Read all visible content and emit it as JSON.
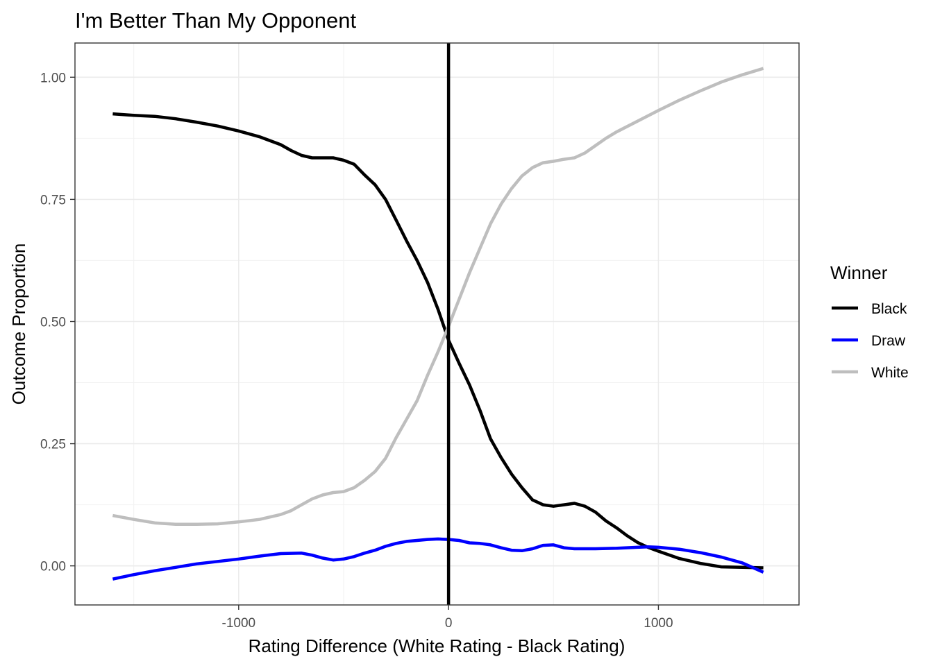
{
  "chart_data": {
    "type": "line",
    "title": "I'm Better Than My Opponent",
    "xlabel": "Rating Difference (White Rating - Black Rating)",
    "ylabel": "Outcome Proportion",
    "xlim": [
      -1780,
      1670
    ],
    "ylim": [
      -0.08,
      1.07
    ],
    "x_ticks": [
      -1000,
      0,
      1000
    ],
    "x_tick_labels": [
      "-1000",
      "0",
      "1000"
    ],
    "y_ticks": [
      0,
      0.25,
      0.5,
      0.75,
      1
    ],
    "y_tick_labels": [
      "0.00",
      "0.25",
      "0.50",
      "0.75",
      "1.00"
    ],
    "grid": true,
    "vline": 0,
    "legend": {
      "title": "Winner",
      "position": "right"
    },
    "series": [
      {
        "name": "Black",
        "color": "#000000",
        "points": [
          [
            -1600,
            0.925
          ],
          [
            -1500,
            0.922
          ],
          [
            -1400,
            0.92
          ],
          [
            -1300,
            0.915
          ],
          [
            -1200,
            0.908
          ],
          [
            -1100,
            0.9
          ],
          [
            -1000,
            0.89
          ],
          [
            -900,
            0.878
          ],
          [
            -800,
            0.862
          ],
          [
            -750,
            0.85
          ],
          [
            -700,
            0.84
          ],
          [
            -650,
            0.835
          ],
          [
            -600,
            0.835
          ],
          [
            -550,
            0.835
          ],
          [
            -500,
            0.83
          ],
          [
            -450,
            0.822
          ],
          [
            -400,
            0.8
          ],
          [
            -350,
            0.78
          ],
          [
            -300,
            0.75
          ],
          [
            -250,
            0.708
          ],
          [
            -200,
            0.665
          ],
          [
            -150,
            0.625
          ],
          [
            -100,
            0.58
          ],
          [
            -50,
            0.525
          ],
          [
            0,
            0.462
          ],
          [
            50,
            0.415
          ],
          [
            100,
            0.37
          ],
          [
            150,
            0.318
          ],
          [
            200,
            0.26
          ],
          [
            250,
            0.222
          ],
          [
            300,
            0.188
          ],
          [
            350,
            0.16
          ],
          [
            400,
            0.135
          ],
          [
            450,
            0.125
          ],
          [
            500,
            0.122
          ],
          [
            550,
            0.125
          ],
          [
            600,
            0.128
          ],
          [
            650,
            0.122
          ],
          [
            700,
            0.11
          ],
          [
            750,
            0.092
          ],
          [
            800,
            0.078
          ],
          [
            850,
            0.062
          ],
          [
            900,
            0.048
          ],
          [
            950,
            0.038
          ],
          [
            1000,
            0.03
          ],
          [
            1100,
            0.015
          ],
          [
            1200,
            0.005
          ],
          [
            1300,
            -0.002
          ],
          [
            1400,
            -0.003
          ],
          [
            1500,
            -0.004
          ]
        ]
      },
      {
        "name": "Draw",
        "color": "#0000ff",
        "points": [
          [
            -1600,
            -0.027
          ],
          [
            -1500,
            -0.018
          ],
          [
            -1400,
            -0.01
          ],
          [
            -1300,
            -0.003
          ],
          [
            -1200,
            0.004
          ],
          [
            -1100,
            0.009
          ],
          [
            -1000,
            0.014
          ],
          [
            -900,
            0.02
          ],
          [
            -800,
            0.025
          ],
          [
            -700,
            0.026
          ],
          [
            -650,
            0.022
          ],
          [
            -600,
            0.016
          ],
          [
            -550,
            0.012
          ],
          [
            -500,
            0.014
          ],
          [
            -450,
            0.019
          ],
          [
            -400,
            0.026
          ],
          [
            -350,
            0.032
          ],
          [
            -300,
            0.04
          ],
          [
            -250,
            0.046
          ],
          [
            -200,
            0.05
          ],
          [
            -150,
            0.052
          ],
          [
            -100,
            0.054
          ],
          [
            -50,
            0.055
          ],
          [
            0,
            0.054
          ],
          [
            50,
            0.052
          ],
          [
            100,
            0.047
          ],
          [
            150,
            0.046
          ],
          [
            200,
            0.043
          ],
          [
            250,
            0.037
          ],
          [
            300,
            0.032
          ],
          [
            350,
            0.031
          ],
          [
            400,
            0.035
          ],
          [
            450,
            0.042
          ],
          [
            500,
            0.043
          ],
          [
            550,
            0.037
          ],
          [
            600,
            0.035
          ],
          [
            700,
            0.035
          ],
          [
            800,
            0.036
          ],
          [
            900,
            0.038
          ],
          [
            950,
            0.039
          ],
          [
            1000,
            0.038
          ],
          [
            1100,
            0.034
          ],
          [
            1200,
            0.027
          ],
          [
            1300,
            0.018
          ],
          [
            1400,
            0.006
          ],
          [
            1500,
            -0.013
          ]
        ]
      },
      {
        "name": "White",
        "color": "#bebebe",
        "points": [
          [
            -1600,
            0.103
          ],
          [
            -1500,
            0.095
          ],
          [
            -1400,
            0.088
          ],
          [
            -1300,
            0.085
          ],
          [
            -1200,
            0.085
          ],
          [
            -1100,
            0.086
          ],
          [
            -1000,
            0.09
          ],
          [
            -900,
            0.095
          ],
          [
            -800,
            0.105
          ],
          [
            -750,
            0.113
          ],
          [
            -700,
            0.125
          ],
          [
            -650,
            0.137
          ],
          [
            -600,
            0.145
          ],
          [
            -550,
            0.15
          ],
          [
            -500,
            0.152
          ],
          [
            -450,
            0.16
          ],
          [
            -400,
            0.175
          ],
          [
            -350,
            0.193
          ],
          [
            -300,
            0.22
          ],
          [
            -250,
            0.262
          ],
          [
            -200,
            0.3
          ],
          [
            -150,
            0.338
          ],
          [
            -100,
            0.39
          ],
          [
            -50,
            0.438
          ],
          [
            0,
            0.49
          ],
          [
            50,
            0.545
          ],
          [
            100,
            0.6
          ],
          [
            150,
            0.65
          ],
          [
            200,
            0.7
          ],
          [
            250,
            0.74
          ],
          [
            300,
            0.772
          ],
          [
            350,
            0.798
          ],
          [
            400,
            0.815
          ],
          [
            450,
            0.825
          ],
          [
            500,
            0.828
          ],
          [
            550,
            0.832
          ],
          [
            600,
            0.835
          ],
          [
            650,
            0.845
          ],
          [
            700,
            0.86
          ],
          [
            750,
            0.875
          ],
          [
            800,
            0.888
          ],
          [
            900,
            0.91
          ],
          [
            1000,
            0.932
          ],
          [
            1100,
            0.953
          ],
          [
            1200,
            0.972
          ],
          [
            1300,
            0.99
          ],
          [
            1400,
            1.005
          ],
          [
            1500,
            1.018
          ]
        ]
      }
    ]
  }
}
